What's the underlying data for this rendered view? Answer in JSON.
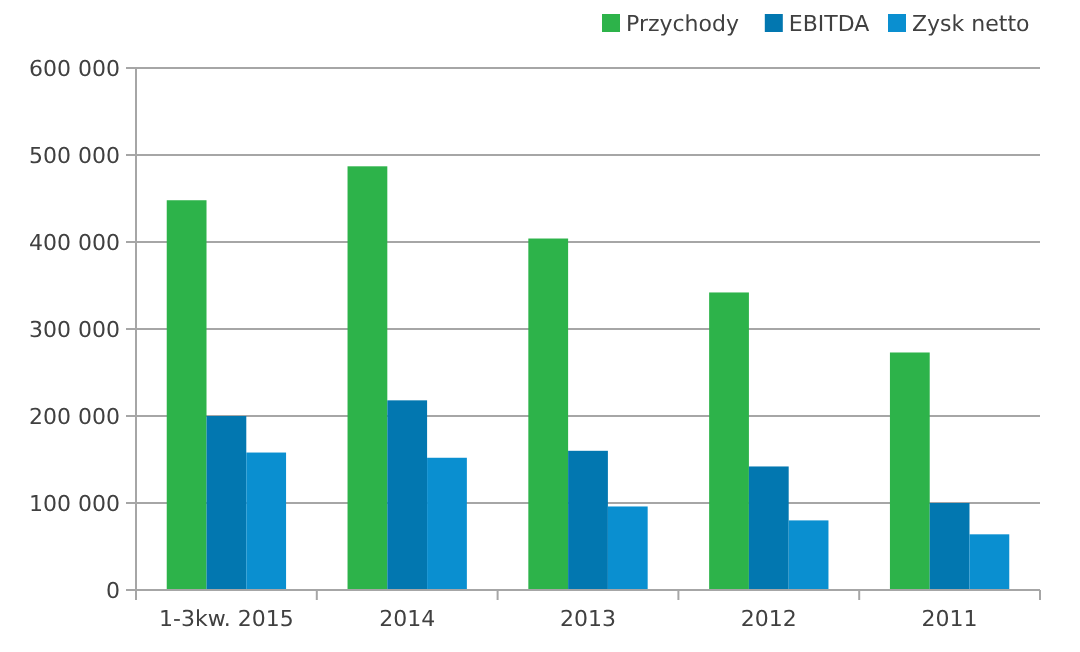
{
  "chart_data": {
    "type": "bar",
    "categories": [
      "1-3kw. 2015",
      "2014",
      "2013",
      "2012",
      "2011"
    ],
    "series": [
      {
        "name": "Przychody",
        "color": "#2db34a",
        "values": [
          448000,
          487000,
          404000,
          342000,
          273000
        ]
      },
      {
        "name": "EBITDA",
        "color": "#0277b0",
        "values": [
          200000,
          218000,
          160000,
          142000,
          100000
        ]
      },
      {
        "name": "Zysk netto",
        "color": "#0a8fd0",
        "values": [
          158000,
          152000,
          96000,
          80000,
          64000
        ]
      }
    ],
    "ylim": [
      0,
      600000
    ],
    "yticks": [
      {
        "value": 0,
        "label": "0"
      },
      {
        "value": 100000,
        "label": "100 000"
      },
      {
        "value": 200000,
        "label": "200 000"
      },
      {
        "value": 300000,
        "label": "300 000"
      },
      {
        "value": 400000,
        "label": "400 000"
      },
      {
        "value": 500000,
        "label": "500 000"
      },
      {
        "value": 600000,
        "label": "600 000"
      }
    ],
    "grid": "y",
    "legend": "top right"
  }
}
